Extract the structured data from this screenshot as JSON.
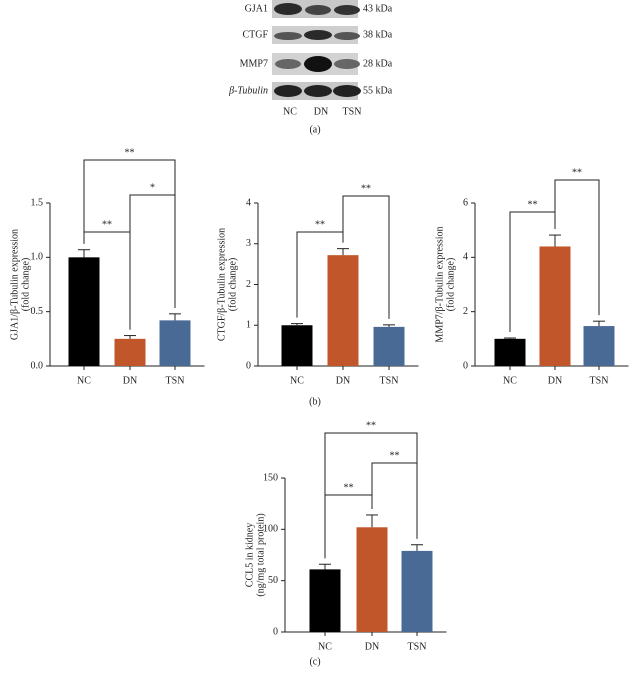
{
  "blot": {
    "rows": [
      "GJA1",
      "CTGF",
      "MMP7",
      "β-Tubulin"
    ],
    "sizes": [
      "43 kDa",
      "38 kDa",
      "28 kDa",
      "55 kDa"
    ],
    "lanes": [
      "NC",
      "DN",
      "TSN"
    ]
  },
  "panel_labels": [
    "(a)",
    "(b)",
    "(c)"
  ],
  "chart_data": [
    {
      "type": "bar",
      "ylabel": [
        "GJA1/β-Tubulin expression",
        "(fold change)"
      ],
      "categories": [
        "NC",
        "DN",
        "TSN"
      ],
      "values": [
        1.0,
        0.25,
        0.42
      ],
      "errors": [
        0.07,
        0.03,
        0.06
      ],
      "colors": [
        "#000000",
        "#c0562a",
        "#4a6a96"
      ],
      "ylim": [
        0,
        1.5
      ],
      "yticks": [
        {
          "value": 0,
          "label": "0.0"
        },
        0.5,
        {
          "value": 1,
          "label": "1.0"
        },
        1.5
      ],
      "significance": [
        {
          "pair": [
            "NC",
            "DN"
          ],
          "label": "**"
        },
        {
          "pair": [
            "DN",
            "TSN"
          ],
          "label": "*"
        },
        {
          "pair": [
            "NC",
            "TSN"
          ],
          "label": "**"
        }
      ]
    },
    {
      "type": "bar",
      "ylabel": [
        "CTGF/β-Tubulin expression",
        "(fold change)"
      ],
      "categories": [
        "NC",
        "DN",
        "TSN"
      ],
      "values": [
        1.0,
        2.72,
        0.96
      ],
      "errors": [
        0.04,
        0.16,
        0.05
      ],
      "colors": [
        "#000000",
        "#c0562a",
        "#4a6a96"
      ],
      "ylim": [
        0,
        4
      ],
      "yticks": [
        0,
        1,
        2,
        3,
        4
      ],
      "significance": [
        {
          "pair": [
            "NC",
            "DN"
          ],
          "label": "**"
        },
        {
          "pair": [
            "DN",
            "TSN"
          ],
          "label": "**"
        }
      ]
    },
    {
      "type": "bar",
      "ylabel": [
        "MMP7/β-Tubulin expression",
        "(fold change)"
      ],
      "categories": [
        "NC",
        "DN",
        "TSN"
      ],
      "values": [
        1.0,
        4.4,
        1.47
      ],
      "errors": [
        0.03,
        0.42,
        0.18
      ],
      "colors": [
        "#000000",
        "#c0562a",
        "#4a6a96"
      ],
      "ylim": [
        0,
        6
      ],
      "yticks": [
        0,
        2,
        4,
        6
      ],
      "significance": [
        {
          "pair": [
            "NC",
            "DN"
          ],
          "label": "**"
        },
        {
          "pair": [
            "DN",
            "TSN"
          ],
          "label": "**"
        }
      ]
    },
    {
      "type": "bar",
      "ylabel": [
        "CCL5 in kidney",
        "(ng/mg total protein)"
      ],
      "categories": [
        "NC",
        "DN",
        "TSN"
      ],
      "values": [
        61,
        102,
        79
      ],
      "errors": [
        5,
        12,
        6
      ],
      "colors": [
        "#000000",
        "#c0562a",
        "#4a6a96"
      ],
      "ylim": [
        0,
        150
      ],
      "yticks": [
        0,
        50,
        100,
        150
      ],
      "significance": [
        {
          "pair": [
            "NC",
            "DN"
          ],
          "label": "**"
        },
        {
          "pair": [
            "DN",
            "TSN"
          ],
          "label": "**"
        },
        {
          "pair": [
            "NC",
            "TSN"
          ],
          "label": "**"
        }
      ]
    }
  ]
}
